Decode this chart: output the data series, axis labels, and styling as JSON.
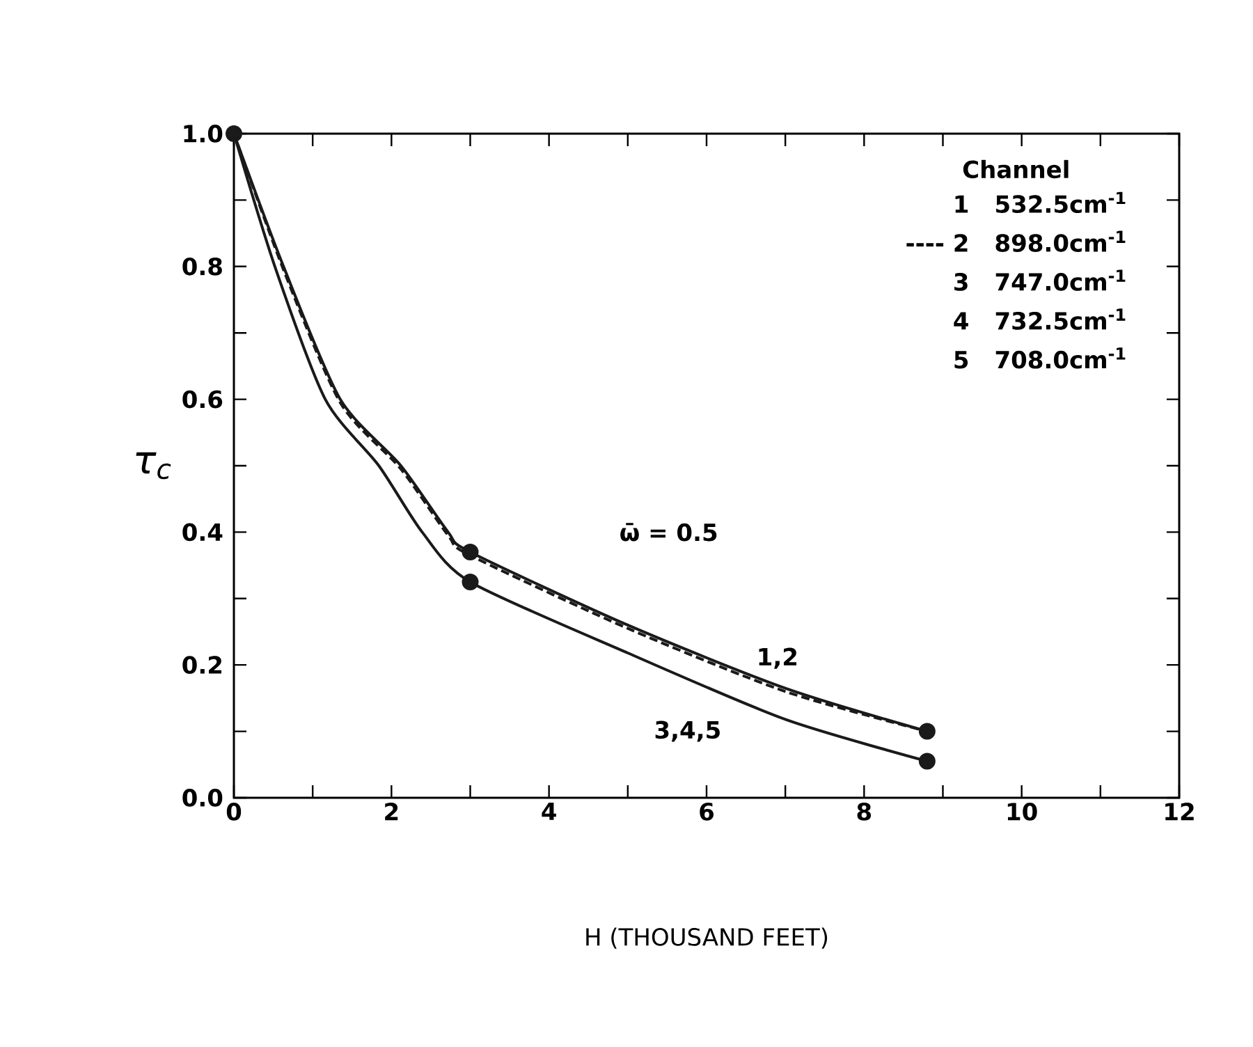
{
  "chart_data": {
    "type": "line",
    "xlabel": "H (THOUSAND FEET)",
    "ylabel": "τ$_{c}$",
    "legend_title": "Channel",
    "xlim": [
      0,
      12
    ],
    "xticks": [
      0,
      {
        "value": 1,
        "label": null
      },
      2,
      {
        "value": 3,
        "label": null
      },
      4,
      {
        "value": 5,
        "label": null
      },
      6,
      {
        "value": 7,
        "label": null
      },
      8,
      {
        "value": 9,
        "label": null
      },
      10,
      {
        "value": 11,
        "label": null
      },
      12
    ],
    "ylim": [
      0,
      1
    ],
    "yticks": [
      {
        "value": 0,
        "label": "0.0"
      },
      {
        "value": 0.1,
        "label": null
      },
      {
        "value": 0.2,
        "label": "0.2"
      },
      {
        "value": 0.3,
        "label": null
      },
      {
        "value": 0.4,
        "label": "0.4"
      },
      {
        "value": 0.5,
        "label": null
      },
      {
        "value": 0.6,
        "label": "0.6"
      },
      {
        "value": 0.7,
        "label": null
      },
      {
        "value": 0.8,
        "label": "0.8"
      },
      {
        "value": 0.9,
        "label": null
      },
      {
        "value": 1,
        "label": "1.0"
      }
    ],
    "grid": false,
    "series": [
      {
        "color": "#1a1a1a",
        "line_style": "solid",
        "x": [
          0,
          0.63,
          1.35,
          2.12,
          2.72,
          3,
          5,
          7,
          8.8
        ],
        "values": [
          1,
          0.8,
          0.6,
          0.5,
          0.4,
          0.37,
          0.26,
          0.165,
          0.1
        ]
      },
      {
        "color": "#1a1a1a",
        "line_style": "dashed",
        "x": [
          0,
          0.63,
          1.35,
          2.12,
          2.72,
          3,
          5,
          7,
          8.8
        ],
        "values": [
          1,
          0.795,
          0.595,
          0.495,
          0.395,
          0.365,
          0.255,
          0.16,
          0.1
        ]
      },
      {
        "color": "#1a1a1a",
        "line_style": "solid",
        "x": [
          0,
          0.52,
          1.16,
          1.84,
          2.39,
          3,
          5,
          7,
          8.8
        ],
        "values": [
          1,
          0.8,
          0.6,
          0.5,
          0.4,
          0.325,
          0.218,
          0.118,
          0.055
        ]
      },
      {
        "type": "scatter",
        "marker": "circle",
        "color": "#1a1a1a",
        "x": [
          0,
          3,
          8.8
        ],
        "values": [
          1,
          0.37,
          0.1
        ]
      },
      {
        "type": "scatter",
        "marker": "circle",
        "color": "#1a1a1a",
        "x": [
          3,
          8.8
        ],
        "values": [
          0.325,
          0.055
        ]
      }
    ],
    "annotations": [
      "1",
      "532.5cm$^{-1}$",
      "---- 2",
      "898.0cm$^{-1}$",
      "3",
      "747.0cm$^{-1}$",
      "4",
      "732.5cm$^{-1}$",
      "5",
      "708.0cm$^{-1}$",
      "ω̄ = 0.5",
      "1,2",
      "3,4,5"
    ]
  }
}
